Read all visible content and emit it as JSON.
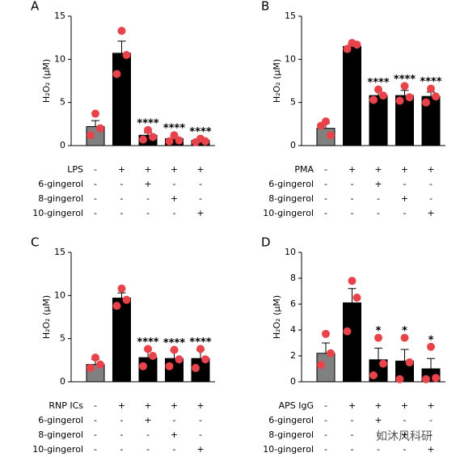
{
  "chart_data": [
    {
      "type": "bar",
      "panel": "A",
      "y_label": "H₂O₂ (μM)",
      "ylim": [
        0,
        15
      ],
      "yticks": [
        0,
        5,
        10,
        15
      ],
      "colors": [
        "#808080",
        "#000000",
        "#000000",
        "#000000",
        "#000000"
      ],
      "point_color": "#e8434a",
      "values": [
        2.2,
        10.7,
        1.2,
        0.8,
        0.6
      ],
      "errors": [
        0.7,
        1.4,
        0.3,
        0.3,
        0.1
      ],
      "points": [
        [
          3.7,
          2.0,
          1.2
        ],
        [
          13.3,
          10.5,
          8.3
        ],
        [
          1.8,
          1.0,
          0.7
        ],
        [
          1.2,
          0.6,
          0.5
        ],
        [
          0.8,
          0.5,
          0.4
        ]
      ],
      "annotations": [
        null,
        null,
        "****",
        "****",
        "****"
      ],
      "treatments": [
        {
          "name": "LPS",
          "marks": [
            "-",
            "+",
            "+",
            "+",
            "+"
          ]
        },
        {
          "name": "6-gingerol",
          "marks": [
            "-",
            "-",
            "+",
            "-",
            "-"
          ]
        },
        {
          "name": "8-gingerol",
          "marks": [
            "-",
            "-",
            "-",
            "+",
            "-"
          ]
        },
        {
          "name": "10-gingerol",
          "marks": [
            "-",
            "-",
            "-",
            "-",
            "+"
          ]
        }
      ]
    },
    {
      "type": "bar",
      "panel": "B",
      "y_label": "H₂O₂ (μM)",
      "ylim": [
        0,
        15
      ],
      "yticks": [
        0,
        5,
        10,
        15
      ],
      "colors": [
        "#808080",
        "#000000",
        "#000000",
        "#000000",
        "#000000"
      ],
      "point_color": "#e8434a",
      "values": [
        2.0,
        11.5,
        5.8,
        5.8,
        5.7
      ],
      "errors": [
        0.6,
        0.2,
        0.6,
        0.6,
        0.5
      ],
      "points": [
        [
          2.8,
          1.2,
          2.3
        ],
        [
          11.9,
          11.7,
          11.2
        ],
        [
          6.5,
          5.8,
          5.3
        ],
        [
          6.9,
          5.6,
          5.2
        ],
        [
          6.6,
          5.7,
          5.0
        ]
      ],
      "annotations": [
        null,
        null,
        "****",
        "****",
        "****"
      ],
      "treatments": [
        {
          "name": "PMA",
          "marks": [
            "-",
            "+",
            "+",
            "+",
            "+"
          ]
        },
        {
          "name": "6-gingerol",
          "marks": [
            "-",
            "-",
            "+",
            "-",
            "-"
          ]
        },
        {
          "name": "8-gingerol",
          "marks": [
            "-",
            "-",
            "-",
            "+",
            "-"
          ]
        },
        {
          "name": "10-gingerol",
          "marks": [
            "-",
            "-",
            "-",
            "-",
            "+"
          ]
        }
      ]
    },
    {
      "type": "bar",
      "panel": "C",
      "y_label": "H₂O₂ (μM)",
      "ylim": [
        0,
        15
      ],
      "yticks": [
        0,
        5,
        10,
        15
      ],
      "colors": [
        "#808080",
        "#000000",
        "#000000",
        "#000000",
        "#000000"
      ],
      "point_color": "#e8434a",
      "values": [
        2.0,
        9.7,
        2.8,
        2.7,
        2.7
      ],
      "errors": [
        0.6,
        0.6,
        1.0,
        0.9,
        1.0
      ],
      "points": [
        [
          2.8,
          2.0,
          1.6
        ],
        [
          10.8,
          9.5,
          8.8
        ],
        [
          3.8,
          3.0,
          1.8
        ],
        [
          3.7,
          2.6,
          1.8
        ],
        [
          3.8,
          2.6,
          1.6
        ]
      ],
      "annotations": [
        null,
        null,
        "****",
        "****",
        "****"
      ],
      "treatments": [
        {
          "name": "RNP ICs",
          "marks": [
            "-",
            "+",
            "+",
            "+",
            "+"
          ]
        },
        {
          "name": "6-gingerol",
          "marks": [
            "-",
            "-",
            "+",
            "-",
            "-"
          ]
        },
        {
          "name": "8-gingerol",
          "marks": [
            "-",
            "-",
            "-",
            "+",
            "-"
          ]
        },
        {
          "name": "10-gingerol",
          "marks": [
            "-",
            "-",
            "-",
            "-",
            "+"
          ]
        }
      ]
    },
    {
      "type": "bar",
      "panel": "D",
      "y_label": "H₂O₂ (μM)",
      "ylim": [
        0,
        10
      ],
      "yticks": [
        0,
        2,
        4,
        6,
        8,
        10
      ],
      "colors": [
        "#808080",
        "#000000",
        "#000000",
        "#000000",
        "#000000"
      ],
      "point_color": "#e8434a",
      "values": [
        2.2,
        6.1,
        1.7,
        1.6,
        1.0
      ],
      "errors": [
        0.8,
        1.1,
        0.9,
        0.9,
        0.8
      ],
      "points": [
        [
          3.7,
          2.2,
          1.3
        ],
        [
          7.8,
          6.5,
          3.9
        ],
        [
          3.4,
          1.4,
          0.5
        ],
        [
          3.4,
          1.5,
          0.2
        ],
        [
          2.7,
          0.3,
          0.2
        ]
      ],
      "annotations": [
        null,
        null,
        "*",
        "*",
        "*"
      ],
      "treatments": [
        {
          "name": "APS IgG",
          "marks": [
            "-",
            "+",
            "+",
            "+",
            "+"
          ]
        },
        {
          "name": "6-gingerol",
          "marks": [
            "-",
            "-",
            "+",
            "-",
            "-"
          ]
        },
        {
          "name": "8-gingerol",
          "marks": [
            "-",
            "-",
            "-",
            "+",
            "-"
          ]
        },
        {
          "name": "10-gingerol",
          "marks": [
            "-",
            "-",
            "-",
            "-",
            "+"
          ]
        }
      ]
    }
  ],
  "watermark": "如沐风科研"
}
